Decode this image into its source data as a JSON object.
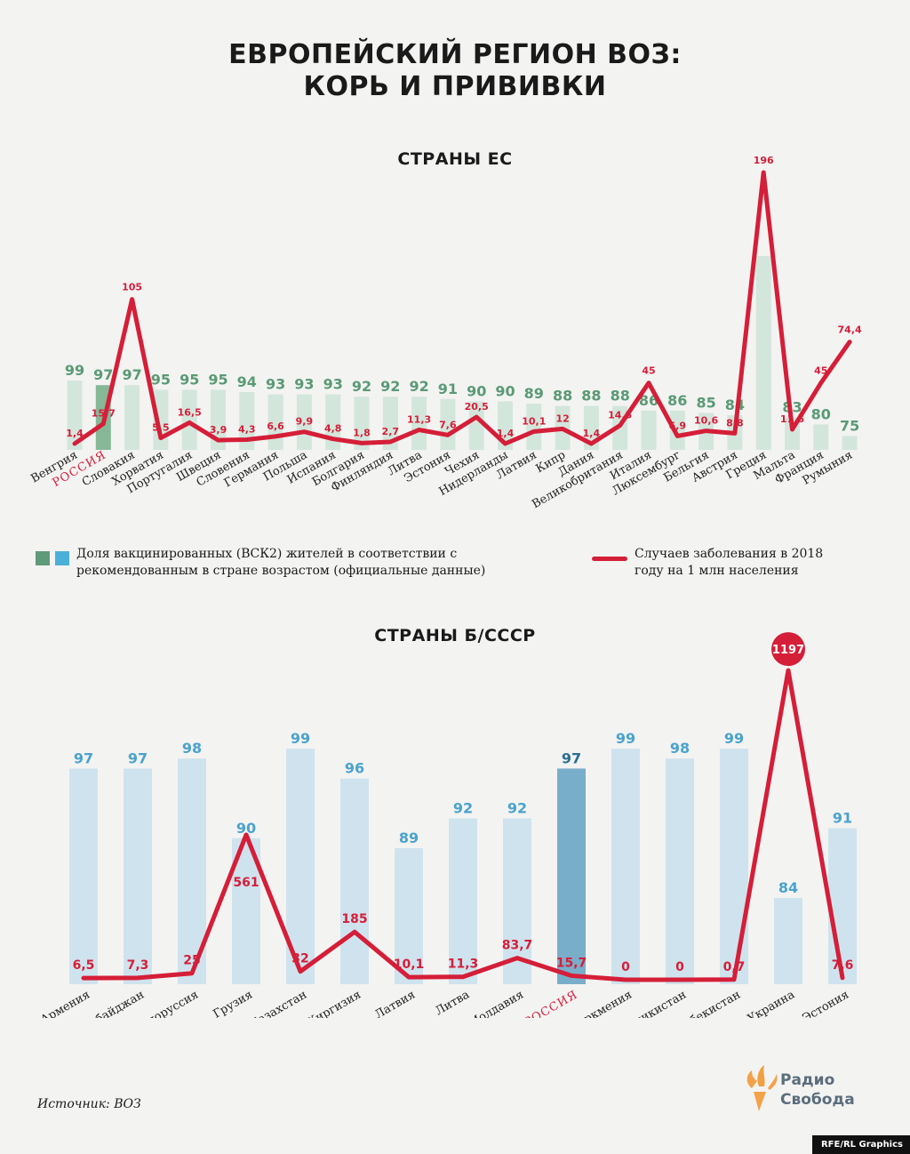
{
  "title_line1": "ЕВРОПЕЙСКИЙ РЕГИОН ВОЗ:",
  "title_line2": "КОРЬ И ПРИВИВКИ",
  "legend": {
    "bars": "Доля вакцинированных (ВСК2) жителей в соответствии с рекомендованным в стране возрастом (официальные данные)",
    "line": "Случаев заболевания в 2018 году на 1 млн населения"
  },
  "source": "Источник: ВОЗ",
  "logo_line1": "Радио",
  "logo_line2": "Свобода",
  "credit": "RFE/RL Graphics",
  "colors": {
    "eu_bar": "#d3e6dc",
    "eu_bar_russia": "#86b897",
    "eu_value_label": "#5a9a75",
    "ussr_bar": "#cfe3ee",
    "ussr_bar_russia": "#79aecb",
    "ussr_value_label": "#4aa3cd",
    "line": "#d51e38",
    "russia_label": "#d51e38"
  },
  "chart_data": [
    {
      "type": "bar",
      "title": "СТРАНЫ ЕС",
      "categories": [
        "Венгрия",
        "РОССИЯ",
        "Словакия",
        "Хорватия",
        "Португалия",
        "Швеция",
        "Словения",
        "Германия",
        "Польша",
        "Испания",
        "Болгария",
        "Финляндия",
        "Литва",
        "Эстония",
        "Чехия",
        "Нидерланды",
        "Латвия",
        "Кипр",
        "Дания",
        "Великобритания",
        "Италия",
        "Люксембург",
        "Бельгия",
        "Австрия",
        "Греция",
        "Мальта",
        "Франция",
        "Румыния"
      ],
      "series": [
        {
          "name": "Доля вакцинированных (ВСК2) жителей в соответствии с рекомендованным в стране возрастом (официальные данные)",
          "type": "bar",
          "values": [
            99,
            97,
            97,
            95,
            95,
            95,
            94,
            93,
            93,
            93,
            92,
            92,
            92,
            91,
            90,
            90,
            89,
            88,
            88,
            88,
            86,
            86,
            85,
            84,
            null,
            83,
            80,
            75
          ]
        },
        {
          "name": "Случаев заболевания в 2018 году на 1 млн населения",
          "type": "line",
          "values": [
            1.4,
            15.7,
            105,
            5.5,
            16.5,
            3.9,
            4.3,
            6.6,
            9.9,
            4.8,
            1.8,
            2.7,
            11.3,
            7.6,
            20.5,
            1.4,
            10.1,
            12,
            1.4,
            14.5,
            45,
            6.9,
            10.6,
            8.8,
            196,
            11.6,
            45,
            74.4
          ],
          "labels": [
            "1,4",
            "15,7",
            "105",
            "5,5",
            "16,5",
            "3,9",
            "4,3",
            "6,6",
            "9,9",
            "4,8",
            "1,8",
            "2,7",
            "11,3",
            "7,6",
            "20,5",
            "1,4",
            "10,1",
            "12",
            "1,4",
            "14,5",
            "45",
            "6,9",
            "10,6",
            "8,8",
            "196",
            "11,6",
            "45",
            "74,4"
          ]
        }
      ],
      "highlight_category": "РОССИЯ"
    },
    {
      "type": "bar",
      "title": "СТРАНЫ Б/СССР",
      "categories": [
        "Армения",
        "Азербайджан",
        "Белоруссия",
        "Грузия",
        "Казахстан",
        "Киргизия",
        "Латвия",
        "Литва",
        "Молдавия",
        "РОССИЯ",
        "Туркмения",
        "Таджикистан",
        "Узбекистан",
        "Украина",
        "Эстония"
      ],
      "series": [
        {
          "name": "Доля вакцинированных (ВСК2) жителей в соответствии с рекомендованным в стране возрастом (официальные данные)",
          "type": "bar",
          "values": [
            97,
            97,
            98,
            90,
            99,
            96,
            89,
            92,
            92,
            97,
            99,
            98,
            99,
            84,
            91
          ]
        },
        {
          "name": "Случаев заболевания в 2018 году на 1 млн населения",
          "type": "line",
          "values": [
            6.5,
            7.3,
            25,
            561,
            32,
            185,
            10.1,
            11.3,
            83.7,
            15.7,
            0,
            0,
            0.7,
            1197,
            7.6
          ],
          "labels": [
            "6,5",
            "7,3",
            "25",
            "561",
            "32",
            "185",
            "10,1",
            "11,3",
            "83,7",
            "15,7",
            "0",
            "0",
            "0,7",
            "1197",
            "7,6"
          ]
        }
      ],
      "highlight_category": "РОССИЯ"
    }
  ]
}
